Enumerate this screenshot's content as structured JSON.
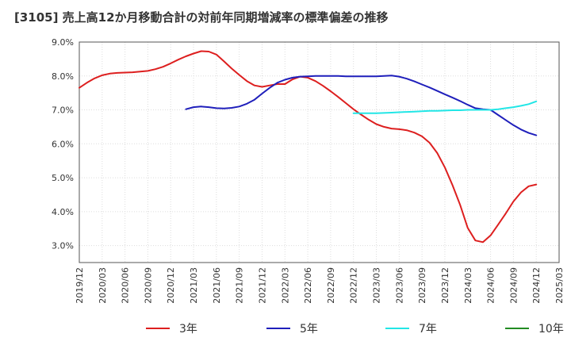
{
  "chart_data": {
    "type": "line",
    "title": "[3105]  売上高12か月移動合計の対前年同期増減率の標準偏差の推移",
    "xlabel": "",
    "ylabel": "",
    "ylim": [
      2.5,
      9.0
    ],
    "yticks": [
      "9.0%",
      "8.0%",
      "7.0%",
      "6.0%",
      "5.0%",
      "4.0%",
      "3.0%"
    ],
    "ytick_values": [
      9.0,
      8.0,
      7.0,
      6.0,
      5.0,
      4.0,
      3.0
    ],
    "xticks": [
      "2019/12",
      "2020/03",
      "2020/06",
      "2020/09",
      "2020/12",
      "2021/03",
      "2021/06",
      "2021/09",
      "2021/12",
      "2022/03",
      "2022/06",
      "2022/09",
      "2022/12",
      "2023/03",
      "2023/06",
      "2023/09",
      "2023/12",
      "2024/03",
      "2024/06",
      "2024/09",
      "2024/12",
      "2025/03"
    ],
    "grid": true,
    "legend_position": "bottom",
    "series": [
      {
        "name": "3年",
        "color": "#dd1f1f",
        "x": [
          "2019/12",
          "2020/01",
          "2020/02",
          "2020/03",
          "2020/04",
          "2020/05",
          "2020/06",
          "2020/07",
          "2020/08",
          "2020/09",
          "2020/10",
          "2020/11",
          "2020/12",
          "2021/01",
          "2021/02",
          "2021/03",
          "2021/04",
          "2021/05",
          "2021/06",
          "2021/07",
          "2021/08",
          "2021/09",
          "2021/10",
          "2021/11",
          "2021/12",
          "2022/01",
          "2022/02",
          "2022/03",
          "2022/04",
          "2022/05",
          "2022/06",
          "2022/07",
          "2022/08",
          "2022/09",
          "2022/10",
          "2022/11",
          "2022/12",
          "2023/01",
          "2023/02",
          "2023/03",
          "2023/04",
          "2023/05",
          "2023/06",
          "2023/07",
          "2023/08",
          "2023/09",
          "2023/10",
          "2023/11",
          "2023/12",
          "2024/01",
          "2024/02",
          "2024/03",
          "2024/04",
          "2024/05",
          "2024/06",
          "2024/07",
          "2024/08",
          "2024/09",
          "2024/10",
          "2024/11",
          "2024/12"
        ],
        "values": [
          7.65,
          7.8,
          7.93,
          8.02,
          8.07,
          8.09,
          8.1,
          8.11,
          8.13,
          8.15,
          8.2,
          8.27,
          8.37,
          8.48,
          8.58,
          8.66,
          8.73,
          8.72,
          8.63,
          8.43,
          8.22,
          8.03,
          7.85,
          7.72,
          7.68,
          7.72,
          7.76,
          7.76,
          7.9,
          7.98,
          7.95,
          7.85,
          7.71,
          7.55,
          7.38,
          7.2,
          7.02,
          6.86,
          6.71,
          6.58,
          6.5,
          6.45,
          6.43,
          6.4,
          6.33,
          6.22,
          6.03,
          5.73,
          5.3,
          4.78,
          4.2,
          3.52,
          3.15,
          3.1,
          3.3,
          3.62,
          3.95,
          4.3,
          4.57,
          4.75,
          4.8
        ]
      },
      {
        "name": "5年",
        "color": "#1f1fbb",
        "x": [
          "2021/02",
          "2021/03",
          "2021/04",
          "2021/05",
          "2021/06",
          "2021/07",
          "2021/08",
          "2021/09",
          "2021/10",
          "2021/11",
          "2021/12",
          "2022/01",
          "2022/02",
          "2022/03",
          "2022/04",
          "2022/05",
          "2022/06",
          "2022/07",
          "2022/08",
          "2022/09",
          "2022/10",
          "2022/11",
          "2022/12",
          "2023/01",
          "2023/02",
          "2023/03",
          "2023/04",
          "2023/05",
          "2023/06",
          "2023/07",
          "2023/08",
          "2023/09",
          "2023/10",
          "2023/11",
          "2023/12",
          "2024/01",
          "2024/02",
          "2024/03",
          "2024/04",
          "2024/05",
          "2024/06",
          "2024/07",
          "2024/08",
          "2024/09",
          "2024/10",
          "2024/11",
          "2024/12"
        ],
        "values": [
          7.02,
          7.08,
          7.1,
          7.08,
          7.05,
          7.04,
          7.06,
          7.1,
          7.18,
          7.3,
          7.48,
          7.65,
          7.8,
          7.89,
          7.95,
          7.98,
          7.99,
          8.0,
          8.0,
          8.0,
          8.0,
          7.99,
          7.99,
          7.99,
          7.99,
          7.99,
          8.0,
          8.01,
          7.98,
          7.92,
          7.84,
          7.75,
          7.66,
          7.56,
          7.46,
          7.36,
          7.26,
          7.15,
          7.05,
          7.02,
          7.0,
          6.85,
          6.7,
          6.55,
          6.42,
          6.32,
          6.25
        ]
      },
      {
        "name": "7年",
        "color": "#22e6e6",
        "x": [
          "2022/12",
          "2023/01",
          "2023/02",
          "2023/03",
          "2023/04",
          "2023/05",
          "2023/06",
          "2023/07",
          "2023/08",
          "2023/09",
          "2023/10",
          "2023/11",
          "2023/12",
          "2024/01",
          "2024/02",
          "2024/03",
          "2024/04",
          "2024/05",
          "2024/06",
          "2024/07",
          "2024/08",
          "2024/09",
          "2024/10",
          "2024/11",
          "2024/12"
        ],
        "values": [
          6.9,
          6.9,
          6.9,
          6.9,
          6.91,
          6.92,
          6.93,
          6.94,
          6.95,
          6.96,
          6.97,
          6.97,
          6.98,
          6.99,
          6.99,
          7.0,
          7.0,
          7.0,
          7.0,
          7.02,
          7.05,
          7.08,
          7.12,
          7.17,
          7.25
        ]
      },
      {
        "name": "10年",
        "color": "#228b22",
        "x": [],
        "values": []
      }
    ]
  }
}
